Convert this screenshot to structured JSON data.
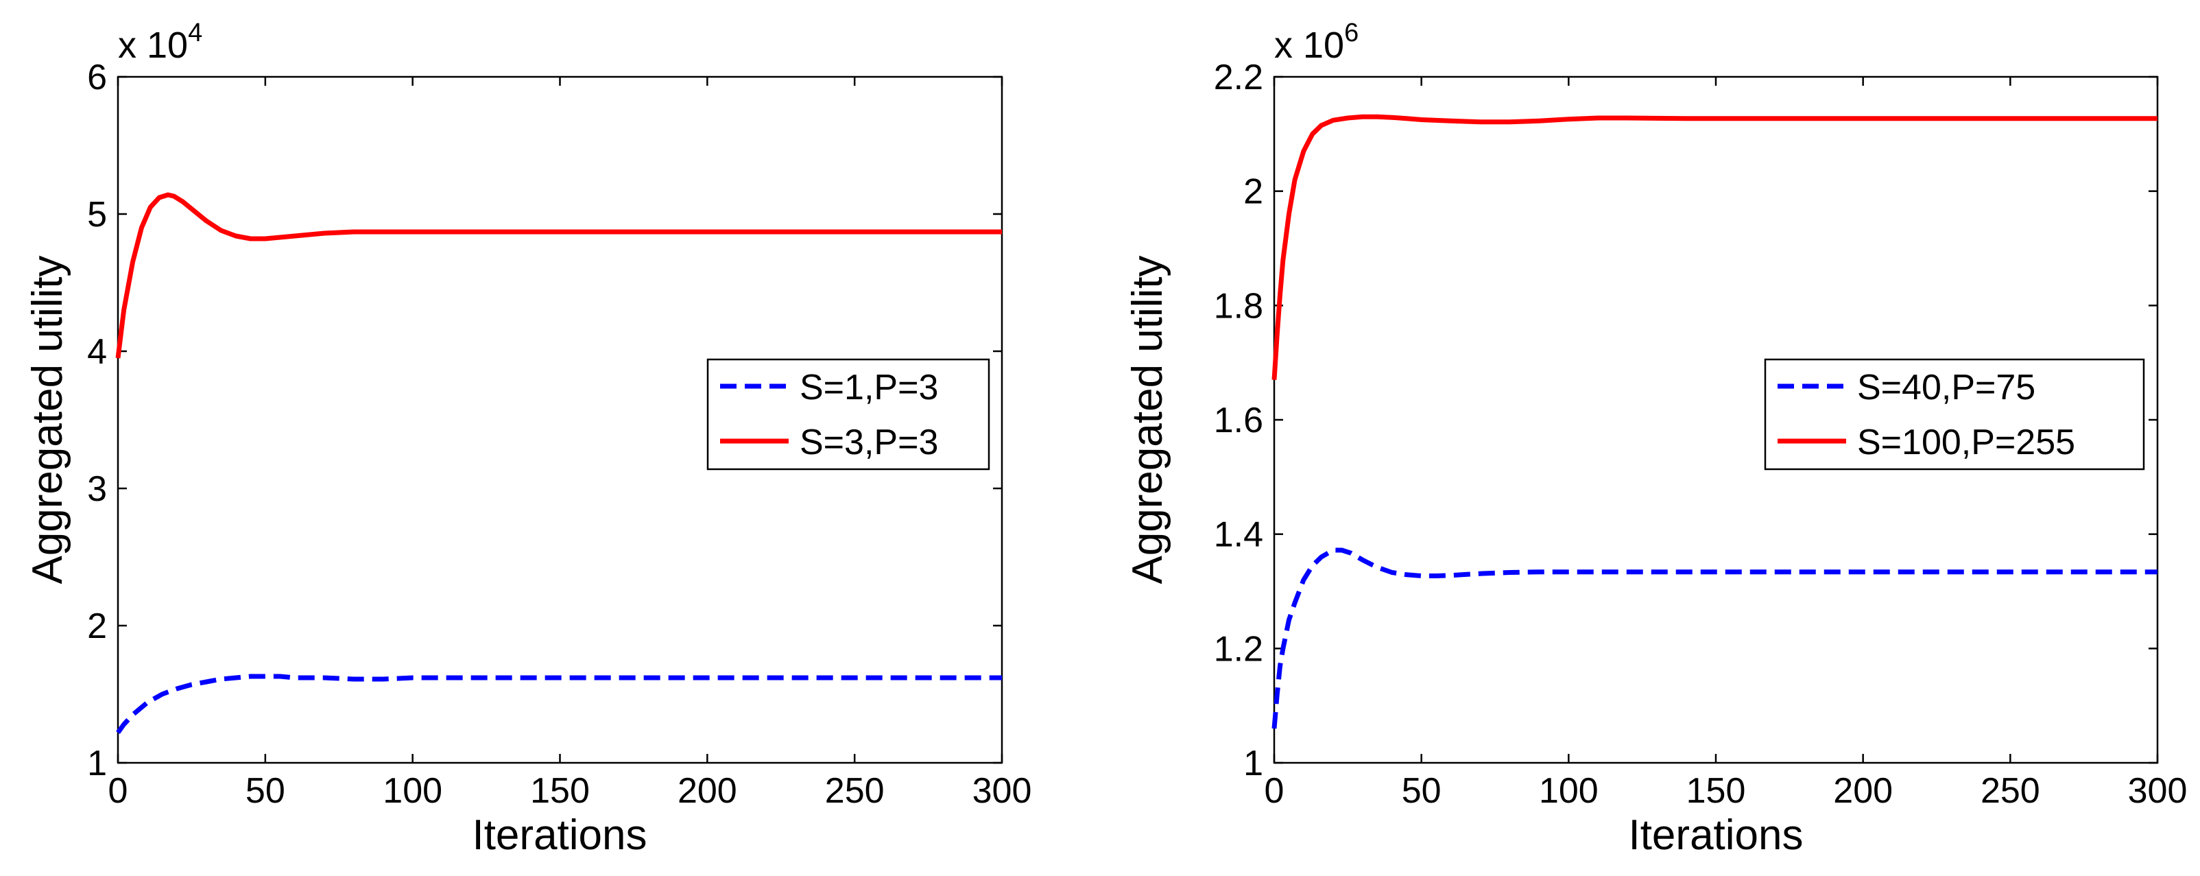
{
  "chart_data": [
    {
      "type": "line",
      "title": "",
      "xlabel": "Iterations",
      "ylabel": "Aggregated utility",
      "exponent_label": "x 10",
      "exponent_power": "4",
      "xlim": [
        0,
        300
      ],
      "ylim": [
        1,
        6
      ],
      "xticks": [
        0,
        50,
        100,
        150,
        200,
        250,
        300
      ],
      "yticks": [
        1,
        2,
        3,
        4,
        5,
        6
      ],
      "legend_position": "center-right",
      "series": [
        {
          "name": "S=1,P=3",
          "color": "#0000ff",
          "style": "dashed",
          "x": [
            0,
            2,
            5,
            10,
            15,
            20,
            25,
            30,
            35,
            40,
            45,
            50,
            55,
            60,
            70,
            80,
            90,
            100,
            110,
            120,
            150,
            200,
            250,
            300
          ],
          "y": [
            1.22,
            1.28,
            1.35,
            1.44,
            1.5,
            1.54,
            1.57,
            1.59,
            1.61,
            1.62,
            1.63,
            1.63,
            1.63,
            1.62,
            1.62,
            1.61,
            1.61,
            1.62,
            1.62,
            1.62,
            1.62,
            1.62,
            1.62,
            1.62
          ]
        },
        {
          "name": "S=3,P=3",
          "color": "#ff0000",
          "style": "solid",
          "x": [
            0,
            2,
            5,
            8,
            11,
            14,
            17,
            19,
            22,
            26,
            30,
            35,
            40,
            45,
            50,
            55,
            60,
            70,
            80,
            90,
            100,
            110,
            130,
            150,
            200,
            250,
            300
          ],
          "y": [
            3.95,
            4.3,
            4.65,
            4.9,
            5.05,
            5.12,
            5.14,
            5.13,
            5.09,
            5.02,
            4.95,
            4.88,
            4.84,
            4.82,
            4.82,
            4.83,
            4.84,
            4.86,
            4.87,
            4.87,
            4.87,
            4.87,
            4.87,
            4.87,
            4.87,
            4.87,
            4.87
          ]
        }
      ]
    },
    {
      "type": "line",
      "title": "",
      "xlabel": "Iterations",
      "ylabel": "Aggregated utility",
      "exponent_label": "x 10",
      "exponent_power": "6",
      "xlim": [
        0,
        300
      ],
      "ylim": [
        1,
        2.2
      ],
      "xticks": [
        0,
        50,
        100,
        150,
        200,
        250,
        300
      ],
      "yticks": [
        1,
        1.2,
        1.4,
        1.6,
        1.8,
        2,
        2.2
      ],
      "legend_position": "center-right",
      "series": [
        {
          "name": "S=40,P=75",
          "color": "#0000ff",
          "style": "dashed",
          "x": [
            0,
            1,
            2,
            3,
            5,
            7,
            10,
            13,
            16,
            20,
            23,
            26,
            30,
            35,
            40,
            45,
            50,
            55,
            60,
            70,
            80,
            90,
            100,
            120,
            150,
            200,
            250,
            300
          ],
          "y": [
            1.06,
            1.12,
            1.17,
            1.2,
            1.25,
            1.28,
            1.32,
            1.345,
            1.36,
            1.372,
            1.372,
            1.367,
            1.355,
            1.342,
            1.333,
            1.329,
            1.327,
            1.327,
            1.328,
            1.331,
            1.333,
            1.334,
            1.334,
            1.334,
            1.334,
            1.334,
            1.334,
            1.334
          ]
        },
        {
          "name": "S=100,P=255",
          "color": "#ff0000",
          "style": "solid",
          "x": [
            0,
            1,
            2,
            3,
            5,
            7,
            10,
            13,
            16,
            20,
            25,
            30,
            35,
            40,
            45,
            50,
            60,
            70,
            80,
            90,
            100,
            110,
            120,
            140,
            160,
            180,
            200,
            250,
            300
          ],
          "y": [
            1.67,
            1.75,
            1.82,
            1.88,
            1.96,
            2.02,
            2.07,
            2.1,
            2.115,
            2.124,
            2.128,
            2.13,
            2.13,
            2.129,
            2.127,
            2.125,
            2.123,
            2.121,
            2.121,
            2.123,
            2.126,
            2.128,
            2.128,
            2.127,
            2.127,
            2.127,
            2.127,
            2.127,
            2.127
          ]
        }
      ]
    }
  ]
}
